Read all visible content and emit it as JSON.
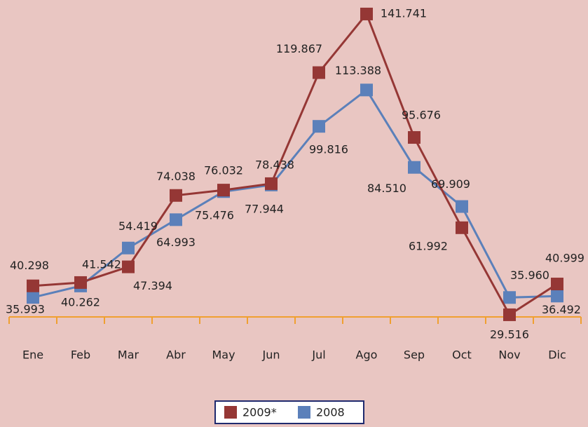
{
  "chart_data": {
    "type": "line",
    "categories": [
      "Ene",
      "Feb",
      "Mar",
      "Abr",
      "May",
      "Jun",
      "Jul",
      "Ago",
      "Sep",
      "Oct",
      "Nov",
      "Dic"
    ],
    "series": [
      {
        "name": "2009*",
        "color": "#953735",
        "values": [
          40298,
          41542,
          47394,
          74038,
          76032,
          78438,
          119867,
          141741,
          95676,
          61992,
          29516,
          40999
        ],
        "value_labels": [
          "40.298",
          "41.542",
          "47.394",
          "74.038",
          "76.032",
          "78.438",
          "119.867",
          "141.741",
          "95.676",
          "61.992",
          "29.516",
          "40.999"
        ]
      },
      {
        "name": "2008",
        "color": "#5b80ba",
        "values": [
          35993,
          40262,
          54419,
          64993,
          75476,
          77944,
          99816,
          113388,
          84510,
          69909,
          35960,
          36492
        ],
        "value_labels": [
          "35.993",
          "40.262",
          "54.419",
          "64.993",
          "75.476",
          "77.944",
          "99.816",
          "113.388",
          "84.510",
          "69.909",
          "35.960",
          "36.492"
        ]
      }
    ],
    "ylim": [
      20000,
      145000
    ],
    "legend": "bottom"
  }
}
